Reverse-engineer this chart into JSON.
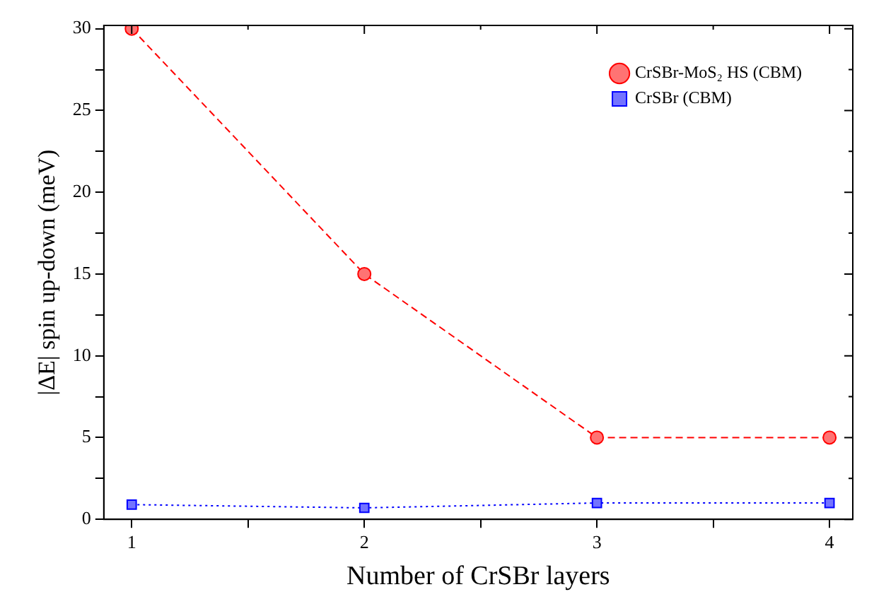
{
  "chart_data": {
    "type": "line",
    "xlabel": "Number of CrSBr layers",
    "ylabel": "|ΔE| spin up-down (meV)",
    "x": [
      1,
      2,
      3,
      4
    ],
    "series": [
      {
        "name": "CrSBr-MoS₂ HS (CBM)",
        "color": "#ff0000",
        "values": [
          30,
          15,
          5,
          5
        ],
        "marker": "circle",
        "line_style": "dashed"
      },
      {
        "name": "CrSBr (CBM)",
        "color": "#0000ff",
        "values": [
          0.9,
          0.7,
          1.0,
          1.0
        ],
        "marker": "square",
        "line_style": "dotted"
      }
    ],
    "xlim": [
      0.88,
      4.1
    ],
    "xticks": [
      1,
      {
        "value": 1.5,
        "label": null
      },
      2,
      {
        "value": 2.5,
        "label": null
      },
      3,
      {
        "value": 3.5,
        "label": null
      },
      4
    ],
    "ylim": [
      0,
      30.2
    ],
    "yticks": [
      0,
      {
        "value": 2.5,
        "label": null
      },
      5,
      {
        "value": 7.5,
        "label": null
      },
      10,
      {
        "value": 12.5,
        "label": null
      },
      15,
      {
        "value": 17.5,
        "label": null
      },
      20,
      {
        "value": 22.5,
        "label": null
      },
      25,
      {
        "value": 27.5,
        "label": null
      },
      30
    ],
    "grid": false,
    "legend": "top right"
  }
}
